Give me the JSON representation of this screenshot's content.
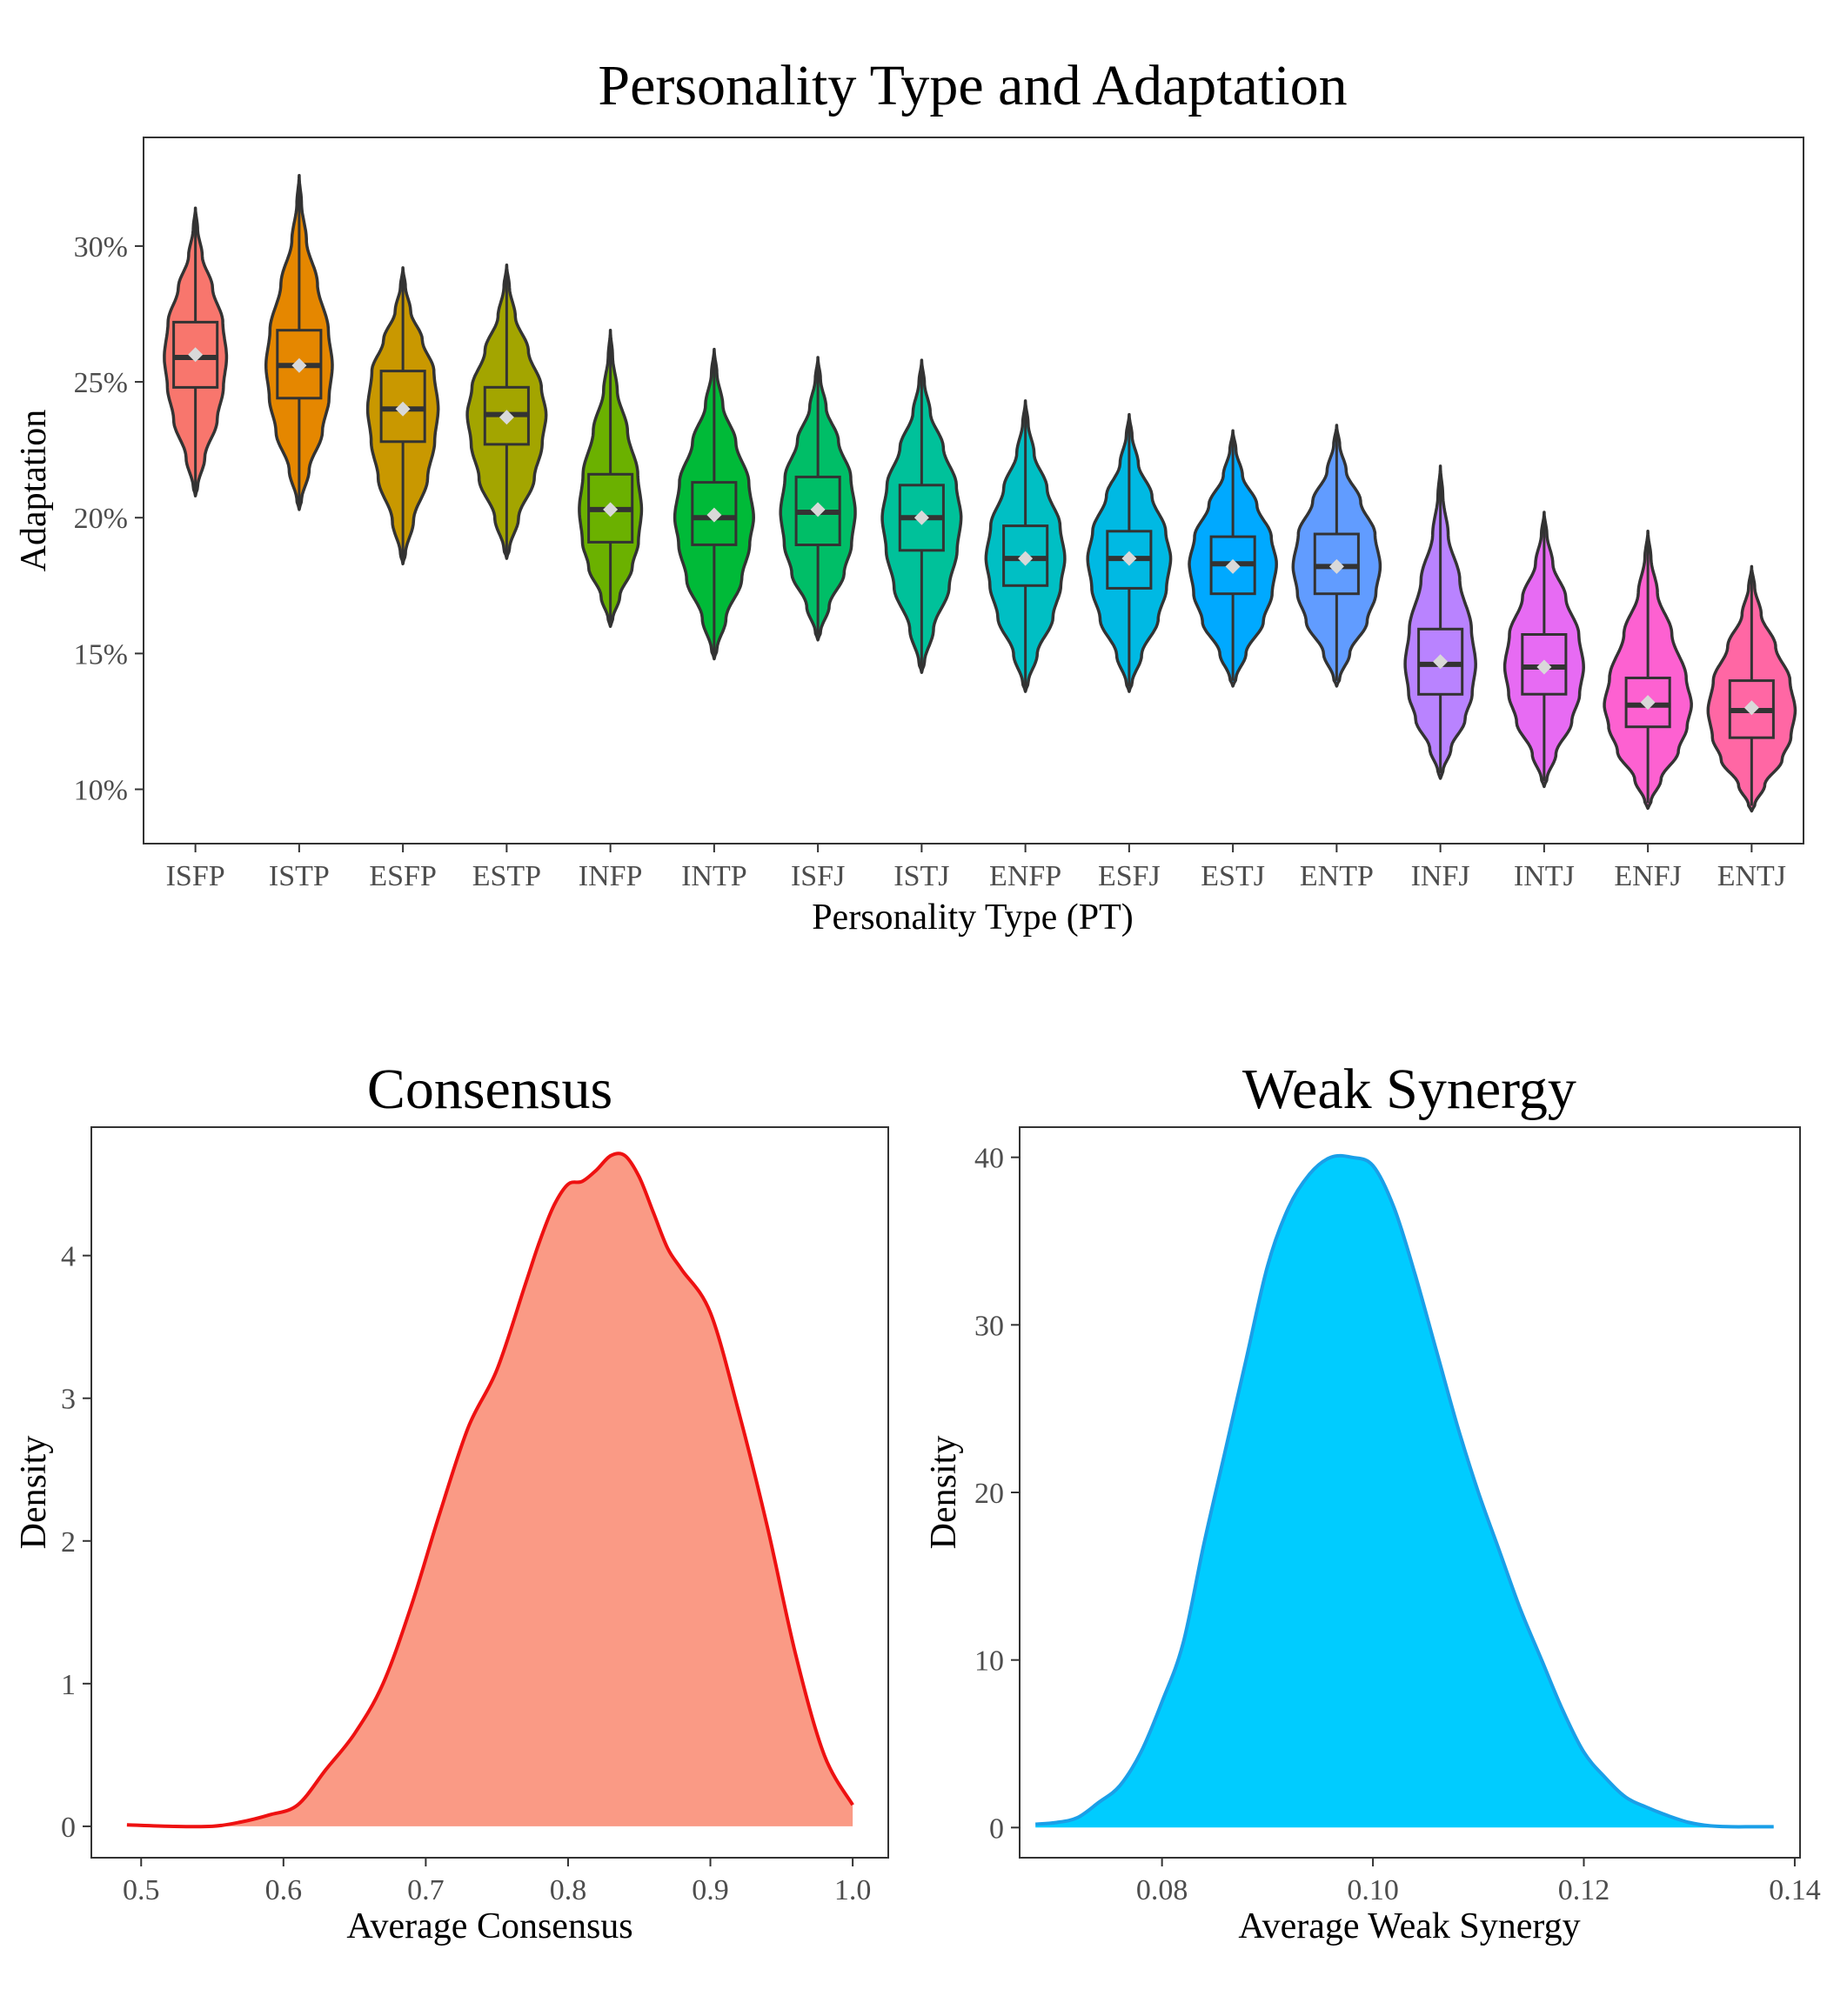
{
  "colors": {
    "violin_outline": "#333333",
    "mean_marker": "#d9d9d9",
    "consensus_fill": "#fa9a85",
    "consensus_line": "#ee1111",
    "synergy_fill": "#00ccff",
    "synergy_line": "#1a9fe8"
  },
  "chart_data": [
    {
      "type": "violin",
      "title": "Personality Type and Adaptation",
      "xlabel": "Personality Type (PT)",
      "ylabel": "Adaptation",
      "ylim": [
        8,
        34
      ],
      "yticks": [
        10,
        15,
        20,
        25,
        30
      ],
      "ytick_labels": [
        "10%",
        "15%",
        "20%",
        "25%",
        "30%"
      ],
      "categories": [
        "ISFP",
        "ISTP",
        "ESFP",
        "ESTP",
        "INFP",
        "INTP",
        "ISFJ",
        "ISTJ",
        "ENFP",
        "ESFJ",
        "ESTJ",
        "ENTP",
        "INFJ",
        "INTJ",
        "ENFJ",
        "ENTJ"
      ],
      "series": [
        {
          "name": "ISFP",
          "color": "#f8766d",
          "min": 20.8,
          "q1": 24.8,
          "median": 25.9,
          "q3": 27.2,
          "max": 31.4,
          "mean": 26.0,
          "max_width": 0.3
        },
        {
          "name": "ISTP",
          "color": "#e58700",
          "min": 20.3,
          "q1": 24.4,
          "median": 25.6,
          "q3": 26.9,
          "max": 32.6,
          "mean": 25.6,
          "max_width": 0.32
        },
        {
          "name": "ESFP",
          "color": "#c99800",
          "min": 18.3,
          "q1": 22.8,
          "median": 24.0,
          "q3": 25.4,
          "max": 29.2,
          "mean": 24.0,
          "max_width": 0.34
        },
        {
          "name": "ESTP",
          "color": "#a3a500",
          "min": 18.5,
          "q1": 22.7,
          "median": 23.8,
          "q3": 24.8,
          "max": 29.3,
          "mean": 23.7,
          "max_width": 0.38
        },
        {
          "name": "INFP",
          "color": "#6bb100",
          "min": 16.0,
          "q1": 19.1,
          "median": 20.3,
          "q3": 21.6,
          "max": 26.9,
          "mean": 20.3,
          "max_width": 0.3
        },
        {
          "name": "INTP",
          "color": "#00ba38",
          "min": 14.8,
          "q1": 19.0,
          "median": 20.0,
          "q3": 21.3,
          "max": 26.2,
          "mean": 20.1,
          "max_width": 0.38
        },
        {
          "name": "ISFJ",
          "color": "#00be67",
          "min": 15.5,
          "q1": 19.0,
          "median": 20.2,
          "q3": 21.5,
          "max": 25.9,
          "mean": 20.3,
          "max_width": 0.36
        },
        {
          "name": "ISTJ",
          "color": "#00c19a",
          "min": 14.3,
          "q1": 18.8,
          "median": 20.0,
          "q3": 21.2,
          "max": 25.8,
          "mean": 20.0,
          "max_width": 0.38
        },
        {
          "name": "ENFP",
          "color": "#00bfc4",
          "min": 13.6,
          "q1": 17.5,
          "median": 18.5,
          "q3": 19.7,
          "max": 24.3,
          "mean": 18.5,
          "max_width": 0.38
        },
        {
          "name": "ESFJ",
          "color": "#00b9e3",
          "min": 13.6,
          "q1": 17.4,
          "median": 18.5,
          "q3": 19.5,
          "max": 23.8,
          "mean": 18.5,
          "max_width": 0.4
        },
        {
          "name": "ESTJ",
          "color": "#00a9ff",
          "min": 13.8,
          "q1": 17.2,
          "median": 18.3,
          "q3": 19.3,
          "max": 23.2,
          "mean": 18.2,
          "max_width": 0.42
        },
        {
          "name": "ENTP",
          "color": "#619cff",
          "min": 13.8,
          "q1": 17.2,
          "median": 18.2,
          "q3": 19.4,
          "max": 23.4,
          "mean": 18.2,
          "max_width": 0.42
        },
        {
          "name": "INFJ",
          "color": "#b983ff",
          "min": 10.4,
          "q1": 13.5,
          "median": 14.6,
          "q3": 15.9,
          "max": 21.9,
          "mean": 14.7,
          "max_width": 0.34
        },
        {
          "name": "INTJ",
          "color": "#e76bf3",
          "min": 10.1,
          "q1": 13.5,
          "median": 14.5,
          "q3": 15.7,
          "max": 20.2,
          "mean": 14.5,
          "max_width": 0.38
        },
        {
          "name": "ENFJ",
          "color": "#fd61d1",
          "min": 9.3,
          "q1": 12.3,
          "median": 13.1,
          "q3": 14.1,
          "max": 19.5,
          "mean": 13.2,
          "max_width": 0.42
        },
        {
          "name": "ENTJ",
          "color": "#ff67a4",
          "min": 9.2,
          "q1": 11.9,
          "median": 12.9,
          "q3": 14.0,
          "max": 18.2,
          "mean": 13.0,
          "max_width": 0.42
        }
      ]
    },
    {
      "type": "area",
      "title": "Consensus",
      "xlabel": "Average Consensus",
      "ylabel": "Density",
      "xlim": [
        0.465,
        1.025
      ],
      "ylim": [
        -0.22,
        4.9
      ],
      "xticks": [
        0.5,
        0.6,
        0.7,
        0.8,
        0.9,
        1.0
      ],
      "xtick_labels": [
        "0.5",
        "0.6",
        "0.7",
        "0.8",
        "0.9",
        "1.0"
      ],
      "yticks": [
        0,
        1,
        2,
        3,
        4
      ],
      "ytick_labels": [
        "0",
        "1",
        "2",
        "3",
        "4"
      ],
      "x": [
        0.49,
        0.52,
        0.55,
        0.57,
        0.59,
        0.61,
        0.63,
        0.65,
        0.67,
        0.69,
        0.71,
        0.73,
        0.75,
        0.77,
        0.78,
        0.79,
        0.8,
        0.81,
        0.82,
        0.83,
        0.84,
        0.85,
        0.86,
        0.87,
        0.88,
        0.9,
        0.92,
        0.94,
        0.96,
        0.98,
        1.0
      ],
      "y": [
        0.01,
        0.0,
        0.0,
        0.03,
        0.08,
        0.15,
        0.4,
        0.65,
        1.0,
        1.55,
        2.2,
        2.8,
        3.2,
        3.8,
        4.1,
        4.35,
        4.5,
        4.52,
        4.6,
        4.7,
        4.7,
        4.55,
        4.3,
        4.05,
        3.9,
        3.6,
        2.9,
        2.1,
        1.2,
        0.5,
        0.15
      ]
    },
    {
      "type": "area",
      "title": "Weak Synergy",
      "xlabel": "Average Weak Synergy",
      "ylabel": "Density",
      "xlim": [
        0.0665,
        0.1405
      ],
      "ylim": [
        -1.8,
        41.8
      ],
      "xticks": [
        0.08,
        0.1,
        0.12,
        0.14
      ],
      "xtick_labels": [
        "0.08",
        "0.10",
        "0.12",
        "0.14"
      ],
      "yticks": [
        0,
        10,
        20,
        30,
        40
      ],
      "ytick_labels": [
        "0",
        "10",
        "20",
        "30",
        "40"
      ],
      "x": [
        0.068,
        0.07,
        0.072,
        0.074,
        0.076,
        0.078,
        0.08,
        0.082,
        0.084,
        0.086,
        0.088,
        0.09,
        0.092,
        0.094,
        0.096,
        0.098,
        0.1,
        0.102,
        0.104,
        0.106,
        0.108,
        0.11,
        0.112,
        0.114,
        0.116,
        0.118,
        0.12,
        0.122,
        0.124,
        0.126,
        0.128,
        0.13,
        0.132,
        0.134,
        0.136,
        0.138
      ],
      "y": [
        0.2,
        0.3,
        0.6,
        1.5,
        2.5,
        4.5,
        7.5,
        11.0,
        17.0,
        22.5,
        28.0,
        33.5,
        37.0,
        39.0,
        40.0,
        40.0,
        39.5,
        37.0,
        33.0,
        28.5,
        24.0,
        20.0,
        16.5,
        13.0,
        10.0,
        7.0,
        4.5,
        3.0,
        1.8,
        1.2,
        0.7,
        0.3,
        0.1,
        0.05,
        0.05,
        0.05
      ]
    }
  ]
}
